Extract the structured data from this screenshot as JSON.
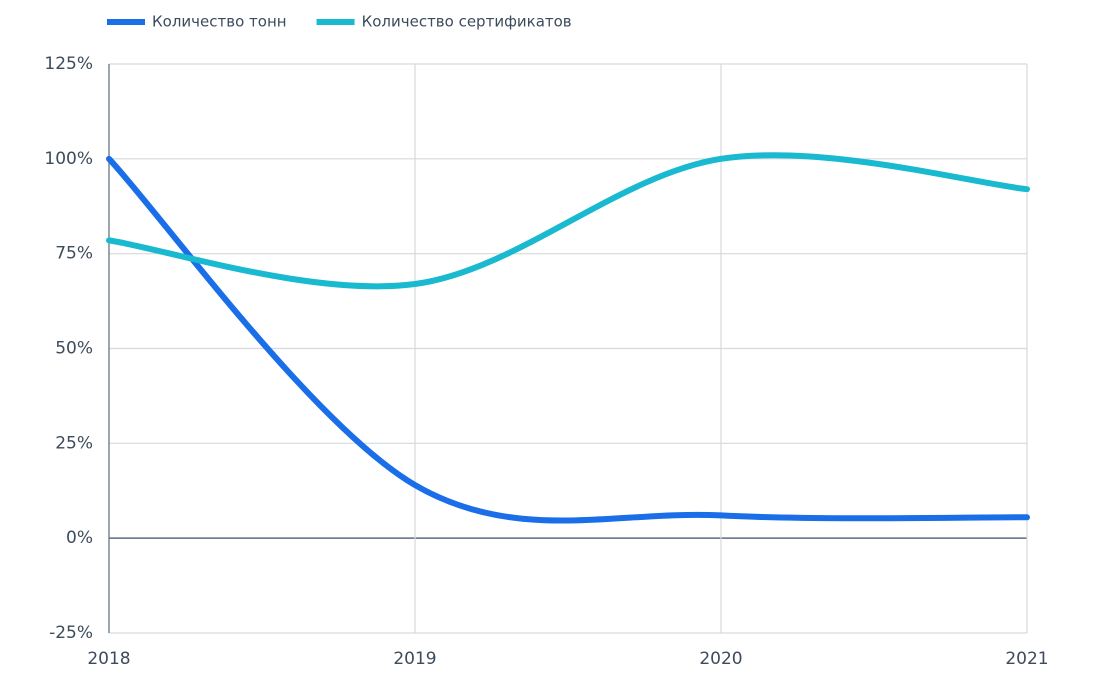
{
  "chart_data": {
    "type": "line",
    "x": [
      2018,
      2019,
      2020,
      2021
    ],
    "xlim": [
      2018,
      2021
    ],
    "xticks": [
      2018,
      2019,
      2020,
      2021
    ],
    "ylim": [
      -25,
      125
    ],
    "yticks": [
      {
        "value": -25,
        "label": "-25%"
      },
      {
        "value": 0,
        "label": "0%"
      },
      {
        "value": 25,
        "label": "25%"
      },
      {
        "value": 50,
        "label": "50%"
      },
      {
        "value": 75,
        "label": "75%"
      },
      {
        "value": 100,
        "label": "100%"
      },
      {
        "value": 125,
        "label": "125%"
      }
    ],
    "grid": true,
    "legend": "top-left",
    "series": [
      {
        "name": "Количество тонн",
        "color": "#1a6fe8",
        "values": [
          100,
          14,
          6,
          5.5
        ]
      },
      {
        "name": "Количество сертификатов",
        "color": "#19b9d0",
        "values": [
          78.5,
          67,
          100,
          92
        ]
      }
    ]
  }
}
